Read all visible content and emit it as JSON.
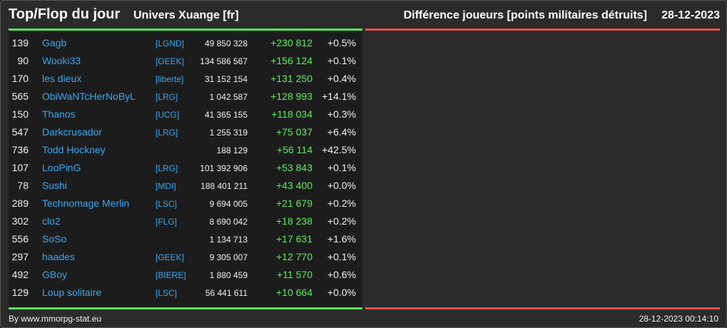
{
  "header": {
    "title": "Top/Flop du jour",
    "universe": "Univers Xuange [fr]",
    "metric": "Différence joueurs [points militaires détruits]",
    "date": "28-12-2023"
  },
  "colors": {
    "positive": "#58ee58",
    "negative": "#e85050",
    "link": "#35a7f0",
    "background": "#2b2b2b"
  },
  "players": [
    {
      "rank": "139",
      "name": "Gagb",
      "ally": "[LGND]",
      "points": "49 850 328",
      "diff": "+230 812",
      "pct": "+0.5%"
    },
    {
      "rank": "90",
      "name": "Wooki33",
      "ally": "[GEEK]",
      "points": "134 586 567",
      "diff": "+156 124",
      "pct": "+0.1%"
    },
    {
      "rank": "170",
      "name": "les dieux",
      "ally": "[liberte]",
      "points": "31 152 154",
      "diff": "+131 250",
      "pct": "+0.4%"
    },
    {
      "rank": "565",
      "name": "ObiWaNTcHerNoByL",
      "ally": "[LRG]",
      "points": "1 042 587",
      "diff": "+128 993",
      "pct": "+14.1%"
    },
    {
      "rank": "150",
      "name": "Thanos",
      "ally": "[UCG]",
      "points": "41 365 155",
      "diff": "+118 034",
      "pct": "+0.3%"
    },
    {
      "rank": "547",
      "name": "Darkcrusador",
      "ally": "[LRG]",
      "points": "1 255 319",
      "diff": "+75 037",
      "pct": "+6.4%"
    },
    {
      "rank": "736",
      "name": "Todd Hockney",
      "ally": "",
      "points": "188 129",
      "diff": "+56 114",
      "pct": "+42.5%"
    },
    {
      "rank": "107",
      "name": "LooPinG",
      "ally": "[LRG]",
      "points": "101 392 906",
      "diff": "+53 843",
      "pct": "+0.1%"
    },
    {
      "rank": "78",
      "name": "Sushi",
      "ally": "[MDI]",
      "points": "188 401 211",
      "diff": "+43 400",
      "pct": "+0.0%"
    },
    {
      "rank": "289",
      "name": "Technomage Merlin",
      "ally": "[LSC]",
      "points": "9 694 005",
      "diff": "+21 679",
      "pct": "+0.2%"
    },
    {
      "rank": "302",
      "name": "clo2",
      "ally": "[FLG]",
      "points": "8 690 042",
      "diff": "+18 238",
      "pct": "+0.2%"
    },
    {
      "rank": "556",
      "name": "SoSo",
      "ally": "",
      "points": "1 134 713",
      "diff": "+17 631",
      "pct": "+1.6%"
    },
    {
      "rank": "297",
      "name": "haades",
      "ally": "[GEEK]",
      "points": "9 305 007",
      "diff": "+12 770",
      "pct": "+0.1%"
    },
    {
      "rank": "492",
      "name": "GBoy",
      "ally": "[BIERE]",
      "points": "1 880 459",
      "diff": "+11 570",
      "pct": "+0.6%"
    },
    {
      "rank": "129",
      "name": "Loup solitaire",
      "ally": "[LSC]",
      "points": "56 441 611",
      "diff": "+10 664",
      "pct": "+0.0%"
    }
  ],
  "footer": {
    "credit": "By www.mmorpg-stat.eu",
    "timestamp": "28-12-2023 00:14:10"
  }
}
